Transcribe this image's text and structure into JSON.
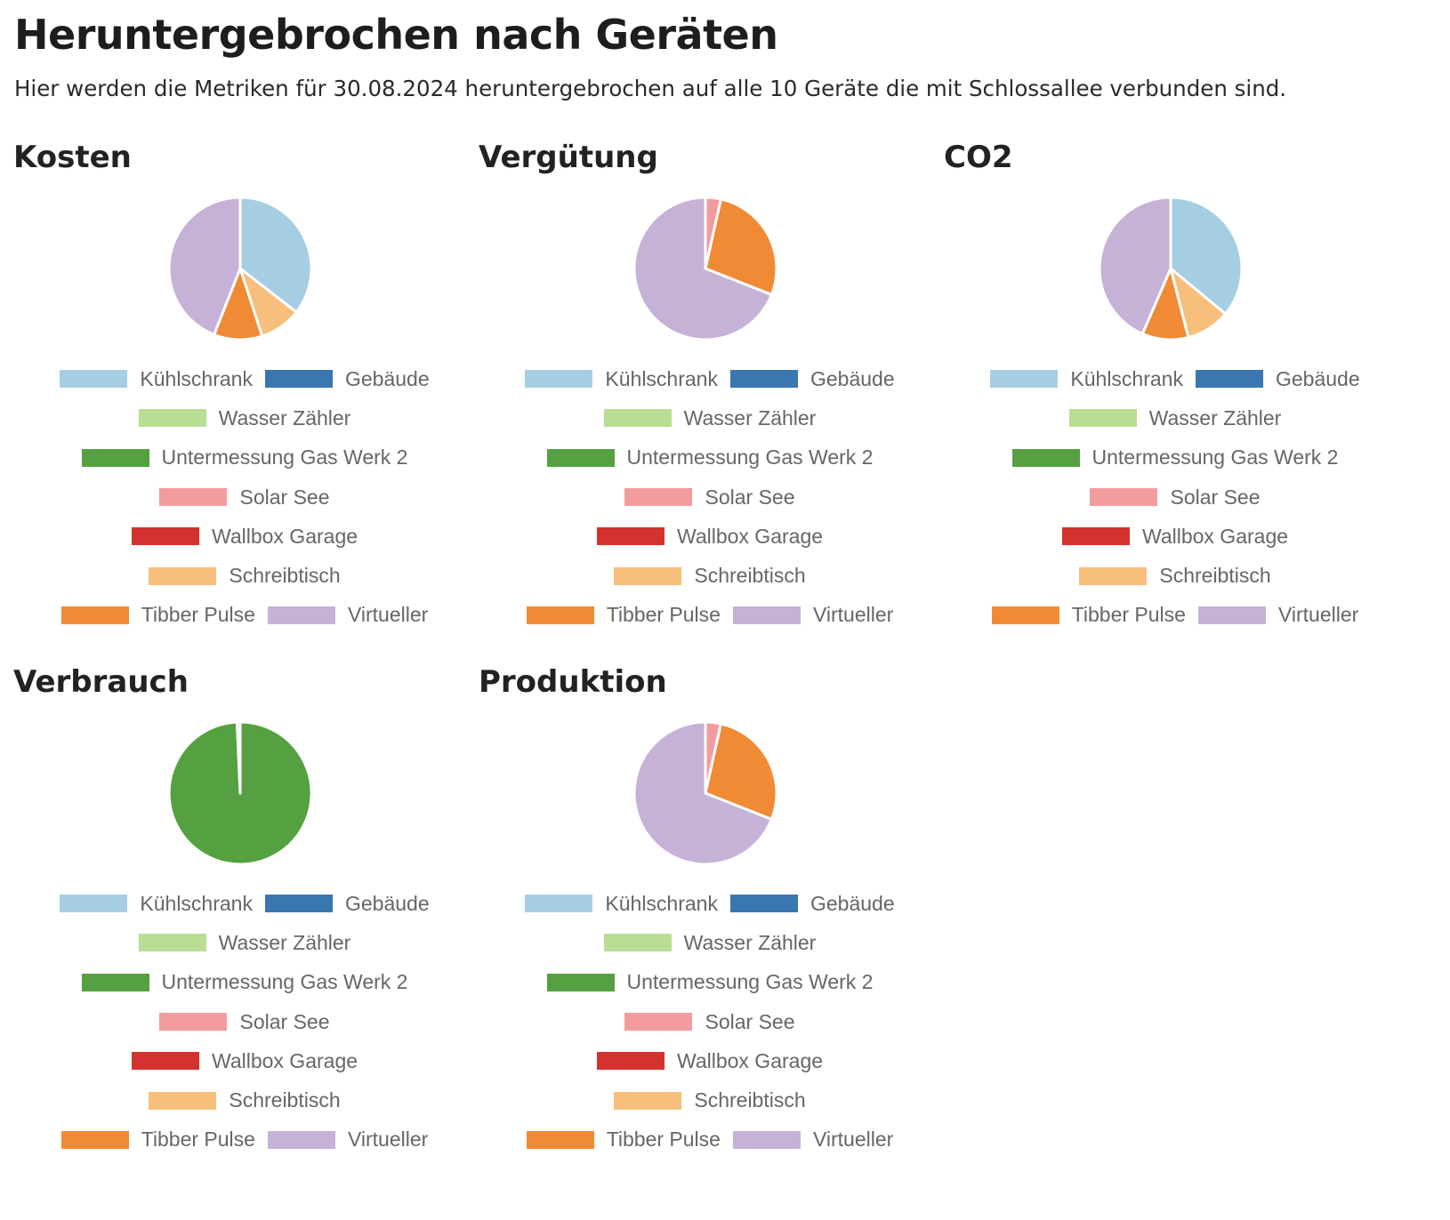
{
  "page": {
    "title": "Heruntergebrochen nach Geräten",
    "subtitle": "Hier werden die Metriken für 30.08.2024 heruntergebrochen auf alle 10 Geräte die mit Schlossallee verbunden sind."
  },
  "legend_items": [
    {
      "label": "Kühlschrank",
      "color": "#a6cee3"
    },
    {
      "label": "Gebäude",
      "color": "#3a77b0"
    },
    {
      "label": "Wasser Zähler",
      "color": "#b9dd93"
    },
    {
      "label": "Untermessung Gas Werk 2",
      "color": "#55a040"
    },
    {
      "label": "Solar See",
      "color": "#f29c9e"
    },
    {
      "label": "Wallbox Garage",
      "color": "#d3322e"
    },
    {
      "label": "Schreibtisch",
      "color": "#f7bf7b"
    },
    {
      "label": "Tibber Pulse",
      "color": "#f08a35"
    },
    {
      "label": "Virtueller",
      "color": "#c5b2d6"
    }
  ],
  "chart_data": [
    {
      "type": "pie",
      "title": "Kosten",
      "categories": [
        "Kühlschrank",
        "Gebäude",
        "Wasser Zähler",
        "Untermessung Gas Werk 2",
        "Solar See",
        "Wallbox Garage",
        "Schreibtisch",
        "Tibber Pulse",
        "Virtueller"
      ],
      "values": [
        35.5,
        0,
        0,
        0,
        0,
        0,
        9.5,
        11,
        44
      ],
      "legend": "bottom"
    },
    {
      "type": "pie",
      "title": "Vergütung",
      "categories": [
        "Kühlschrank",
        "Gebäude",
        "Wasser Zähler",
        "Untermessung Gas Werk 2",
        "Solar See",
        "Wallbox Garage",
        "Schreibtisch",
        "Tibber Pulse",
        "Virtueller"
      ],
      "values": [
        0,
        0,
        0,
        0,
        3.5,
        0,
        0,
        27.5,
        69
      ],
      "legend": "bottom"
    },
    {
      "type": "pie",
      "title": "CO2",
      "categories": [
        "Kühlschrank",
        "Gebäude",
        "Wasser Zähler",
        "Untermessung Gas Werk 2",
        "Solar See",
        "Wallbox Garage",
        "Schreibtisch",
        "Tibber Pulse",
        "Virtueller"
      ],
      "values": [
        36,
        0,
        0,
        0,
        0,
        0,
        10,
        10.5,
        43.5
      ],
      "legend": "bottom"
    },
    {
      "type": "pie",
      "title": "Verbrauch",
      "categories": [
        "Kühlschrank",
        "Gebäude",
        "Wasser Zähler",
        "Untermessung Gas Werk 2",
        "Solar See",
        "Wallbox Garage",
        "Schreibtisch",
        "Tibber Pulse",
        "Virtueller"
      ],
      "values": [
        0,
        0,
        0,
        99.3,
        0,
        0,
        0,
        0,
        0.7
      ],
      "legend": "bottom"
    },
    {
      "type": "pie",
      "title": "Produktion",
      "categories": [
        "Kühlschrank",
        "Gebäude",
        "Wasser Zähler",
        "Untermessung Gas Werk 2",
        "Solar See",
        "Wallbox Garage",
        "Schreibtisch",
        "Tibber Pulse",
        "Virtueller"
      ],
      "values": [
        0,
        0,
        0,
        0,
        3.5,
        0,
        0,
        27.5,
        69
      ],
      "legend": "bottom"
    }
  ]
}
